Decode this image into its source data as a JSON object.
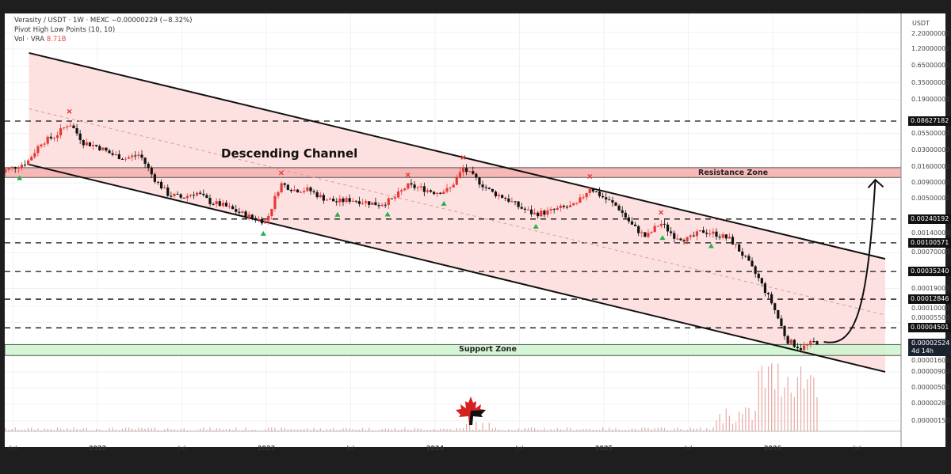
{
  "header": {
    "symbol_line": "Verasity / USDT · 1W · MEXC",
    "change": "−0.00000229 (−8.32%)",
    "indicator": "Pivot High Low Points (10, 10)",
    "vol_label": "Vol · VRA",
    "vol_value": "8.71B"
  },
  "annotations": {
    "channel_label": "Descending Channel",
    "resistance_label": "Resistance Zone",
    "support_label": "Support Zone"
  },
  "colors": {
    "up_candle": "#e53935",
    "down_candle": "#111111",
    "channel_fill": "#fde1e0",
    "resistance_fill": "#f7b9b7",
    "support_fill": "#cdf5cd",
    "pivot_high": "#e53935",
    "pivot_low": "#22b14c",
    "volume": "#e8a9a6"
  },
  "chart_data": {
    "type": "line",
    "title": "",
    "yscale": "log",
    "y_unit": "USDT",
    "ylim": [
      1.2e-06,
      2.2
    ],
    "grid": true,
    "price_ticks": [
      "2.20000000",
      "1.20000000",
      "0.65000000",
      "0.35000000",
      "0.19000000",
      "0.05500000",
      "0.03000000",
      "0.01600000",
      "0.00900000",
      "0.00500000",
      "0.00140000",
      "0.00070000",
      "0.00019000",
      "0.00010000",
      "0.00005500",
      "0.00001600",
      "0.00000900",
      "0.00000500",
      "0.00000280",
      "0.00000150"
    ],
    "x_ticks": [
      {
        "label": "Jul",
        "date": "2021-07-01"
      },
      {
        "label": "2022",
        "date": "2022-01-01"
      },
      {
        "label": "Jul",
        "date": "2022-07-01"
      },
      {
        "label": "2023",
        "date": "2023-01-01"
      },
      {
        "label": "Jul",
        "date": "2023-07-01"
      },
      {
        "label": "2024",
        "date": "2024-01-01"
      },
      {
        "label": "Jul",
        "date": "2024-07-01"
      },
      {
        "label": "2025",
        "date": "2025-01-01"
      },
      {
        "label": "Jul",
        "date": "2025-07-01"
      },
      {
        "label": "2026",
        "date": "2026-01-01"
      },
      {
        "label": "Jul",
        "date": "2026-07-01"
      }
    ],
    "series": [
      {
        "points": [
          [
            "2021-06-01",
            0.013
          ],
          [
            "2021-08-01",
            0.0192
          ],
          [
            "2021-09-01",
            0.0396
          ],
          [
            "2021-10-01",
            0.05
          ],
          [
            "2021-11-01",
            0.0816
          ],
          [
            "2021-12-01",
            0.0396
          ],
          [
            "2022-01-01",
            0.0342
          ],
          [
            "2022-02-01",
            0.0256
          ],
          [
            "2022-03-01",
            0.0221
          ],
          [
            "2022-04-01",
            0.0256
          ],
          [
            "2022-05-01",
            0.0108
          ],
          [
            "2022-06-01",
            0.006
          ],
          [
            "2022-07-01",
            0.0052
          ],
          [
            "2022-08-01",
            0.0064
          ],
          [
            "2022-09-01",
            0.0045
          ],
          [
            "2022-10-01",
            0.0039
          ],
          [
            "2022-11-01",
            0.0031
          ],
          [
            "2022-12-01",
            0.0025
          ],
          [
            "2023-01-01",
            0.0022
          ],
          [
            "2023-02-01",
            0.0088
          ],
          [
            "2023-03-01",
            0.007
          ],
          [
            "2023-04-01",
            0.007
          ],
          [
            "2023-05-01",
            0.0052
          ],
          [
            "2023-06-01",
            0.0045
          ],
          [
            "2023-07-01",
            0.0049
          ],
          [
            "2023-08-01",
            0.0045
          ],
          [
            "2023-09-01",
            0.0041
          ],
          [
            "2023-10-01",
            0.0049
          ],
          [
            "2023-11-01",
            0.0081
          ],
          [
            "2023-12-01",
            0.0074
          ],
          [
            "2024-01-01",
            0.0064
          ],
          [
            "2024-02-01",
            0.007
          ],
          [
            "2024-03-01",
            0.0152
          ],
          [
            "2024-04-01",
            0.0099
          ],
          [
            "2024-05-01",
            0.0064
          ],
          [
            "2024-06-01",
            0.0052
          ],
          [
            "2024-07-01",
            0.0037
          ],
          [
            "2024-08-01",
            0.0029
          ],
          [
            "2024-09-01",
            0.0031
          ],
          [
            "2024-10-01",
            0.0036
          ],
          [
            "2024-11-01",
            0.0039
          ],
          [
            "2024-12-01",
            0.0076
          ],
          [
            "2025-01-01",
            0.0052
          ],
          [
            "2025-02-01",
            0.0037
          ],
          [
            "2025-03-01",
            0.0019
          ],
          [
            "2025-04-01",
            0.00123
          ],
          [
            "2025-05-01",
            0.0021
          ],
          [
            "2025-06-01",
            0.0013
          ],
          [
            "2025-07-01",
            0.00113
          ],
          [
            "2025-08-01",
            0.00155
          ],
          [
            "2025-09-01",
            0.00138
          ],
          [
            "2025-10-01",
            0.00113
          ],
          [
            "2025-11-01",
            0.0006
          ],
          [
            "2025-12-01",
            0.00027
          ],
          [
            "2026-01-01",
            0.000105
          ],
          [
            "2026-02-01",
            2.86e-05
          ],
          [
            "2026-03-01",
            2.14e-05
          ],
          [
            "2026-04-01",
            2.7e-05
          ]
        ]
      }
    ],
    "channel": {
      "upper": [
        [
          "2021-08-05",
          1.04
        ],
        [
          "2026-09-01",
          0.00056
        ]
      ],
      "lower": [
        [
          "2021-08-05",
          0.0176
        ],
        [
          "2026-09-01",
          9e-06
        ]
      ],
      "median": [
        [
          "2021-08-05",
          0.135
        ],
        [
          "2026-09-01",
          7.2e-05
        ]
      ]
    },
    "resistance_zone": {
      "top": 0.0157,
      "bottom": 0.011
    },
    "support_zone": {
      "top": 2.45e-05,
      "bottom": 1.64e-05
    },
    "levels": [
      {
        "price": 0.08627182,
        "label": "0.08627182"
      },
      {
        "price": 0.00240192,
        "label": "0.00240192"
      },
      {
        "price": 0.00100571,
        "label": "0.00100571"
      },
      {
        "price": 0.0003524,
        "label": "0.00035240"
      },
      {
        "price": 0.00012846,
        "label": "0.00012846"
      },
      {
        "price": 4.501e-05,
        "label": "0.00004501"
      }
    ],
    "last_price": {
      "label": "0.00002524",
      "countdown": "4d 14h"
    },
    "pivot_highs": [
      "2021-11-01",
      "2023-02-03",
      "2023-11-03",
      "2024-03-01",
      "2024-12-01",
      "2025-05-03"
    ],
    "pivot_lows": [
      "2021-07-15",
      "2022-12-25",
      "2023-06-03",
      "2023-09-20",
      "2024-01-20",
      "2024-08-06",
      "2025-05-06",
      "2025-08-20"
    ],
    "projection": {
      "from": [
        "2026-04-10",
        2.7e-05
      ],
      "to": [
        "2026-08-10",
        0.0113
      ]
    }
  }
}
